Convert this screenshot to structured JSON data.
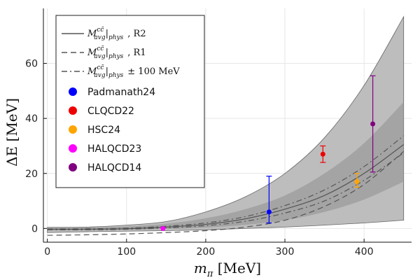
{
  "chart_data": {
    "type": "line",
    "title": "",
    "xlabel": "m_π [MeV]",
    "ylabel": "ΔE [MeV]",
    "xlabel_parts": {
      "sym": "m",
      "sub": "π",
      "unit": " [MeV]"
    },
    "ylabel_parts": {
      "sym": "ΔE",
      "unit": " [MeV]"
    },
    "xlim": [
      -5,
      460
    ],
    "ylim": [
      -5,
      80
    ],
    "xticks": [
      0,
      100,
      200,
      300,
      400
    ],
    "yticks": [
      0,
      20,
      40,
      60
    ],
    "grid": true,
    "legend_position": "top-left",
    "colors": {
      "outer_band": "#bdbdbd",
      "inner_band": "#9a9a9a",
      "line": "#555555",
      "Padmanath24": "#0000ff",
      "CLQCD22": "#ee0000",
      "HSC24": "#ffa500",
      "HALQCD23": "#ff00ff",
      "HALQCD14": "#800080"
    },
    "bands": [
      {
        "name": "outer",
        "x": [
          0,
          50,
          100,
          150,
          200,
          250,
          300,
          350,
          400,
          450
        ],
        "lower": [
          -1.5,
          -1.2,
          -1.0,
          -0.8,
          -0.5,
          0.0,
          0.5,
          1.2,
          2.0,
          3.0
        ],
        "upper": [
          0.4,
          0.5,
          1.2,
          2.5,
          6.0,
          11.5,
          20.0,
          33.0,
          52.0,
          77.0
        ]
      },
      {
        "name": "inner",
        "x": [
          0,
          50,
          100,
          150,
          200,
          250,
          300,
          350,
          400,
          450
        ],
        "lower": [
          -0.5,
          -0.5,
          -0.4,
          -0.2,
          0.3,
          1.3,
          3.0,
          6.0,
          10.5,
          17.0
        ],
        "upper": [
          0.2,
          0.3,
          0.7,
          1.7,
          3.7,
          7.0,
          12.0,
          20.0,
          31.0,
          46.0
        ]
      }
    ],
    "series": [
      {
        "name": "R2",
        "style": "solid",
        "x": [
          0,
          50,
          100,
          150,
          200,
          250,
          300,
          350,
          400,
          450
        ],
        "y": [
          -0.3,
          -0.3,
          -0.1,
          0.5,
          1.5,
          3.5,
          7.0,
          12.0,
          20.0,
          30.5
        ]
      },
      {
        "name": "R1",
        "style": "dashed",
        "x": [
          0,
          50,
          100,
          150,
          200,
          250,
          300,
          350,
          400,
          450
        ],
        "y": [
          -2.5,
          -2.3,
          -2.0,
          -1.5,
          -0.8,
          0.5,
          3.0,
          8.0,
          16.0,
          28.0
        ]
      },
      {
        "name": "± 100 MeV upper",
        "style": "dashdot",
        "x": [
          0,
          50,
          100,
          150,
          200,
          250,
          300,
          350,
          400,
          450
        ],
        "y": [
          -0.2,
          -0.1,
          0.1,
          0.8,
          2.0,
          4.3,
          8.3,
          14.0,
          22.5,
          33.7
        ]
      },
      {
        "name": "± 100 MeV lower",
        "style": "dashdot",
        "x": [
          0,
          50,
          100,
          150,
          200,
          250,
          300,
          350,
          400,
          450
        ],
        "y": [
          -0.5,
          -0.5,
          -0.3,
          0.2,
          1.0,
          2.6,
          5.6,
          10.0,
          17.5,
          27.5
        ]
      }
    ],
    "points": [
      {
        "name": "Padmanath24",
        "x": 280,
        "y": 6.0,
        "yerr_low": 2.0,
        "yerr_high": 19.0
      },
      {
        "name": "CLQCD22",
        "x": 348,
        "y": 27.0,
        "yerr_low": 24.0,
        "yerr_high": 30.0
      },
      {
        "name": "HSC24",
        "x": 391,
        "y": 17.0,
        "yerr_low": 15.0,
        "yerr_high": 20.0
      },
      {
        "name": "HALQCD23",
        "x": 146,
        "y": 0.0,
        "yerr_low": -0.3,
        "yerr_high": 0.3
      },
      {
        "name": "HALQCD14",
        "x": 411,
        "y": 38.0,
        "yerr_low": 20.5,
        "yerr_high": 55.5
      }
    ],
    "legend": {
      "lines": [
        {
          "style": "solid",
          "sym": "M",
          "sup": "cc̄",
          "sub": "avg",
          "phys": "phys",
          "tail": ", R2"
        },
        {
          "style": "dashed",
          "sym": "M",
          "sup": "cc̄",
          "sub": "avg",
          "phys": "phys",
          "tail": ", R1"
        },
        {
          "style": "dashdot",
          "sym": "M",
          "sup": "cc̄",
          "sub": "avg",
          "phys": "phys",
          "tail": "± 100  MeV"
        }
      ],
      "markers": [
        "Padmanath24",
        "CLQCD22",
        "HSC24",
        "HALQCD23",
        "HALQCD14"
      ]
    }
  }
}
